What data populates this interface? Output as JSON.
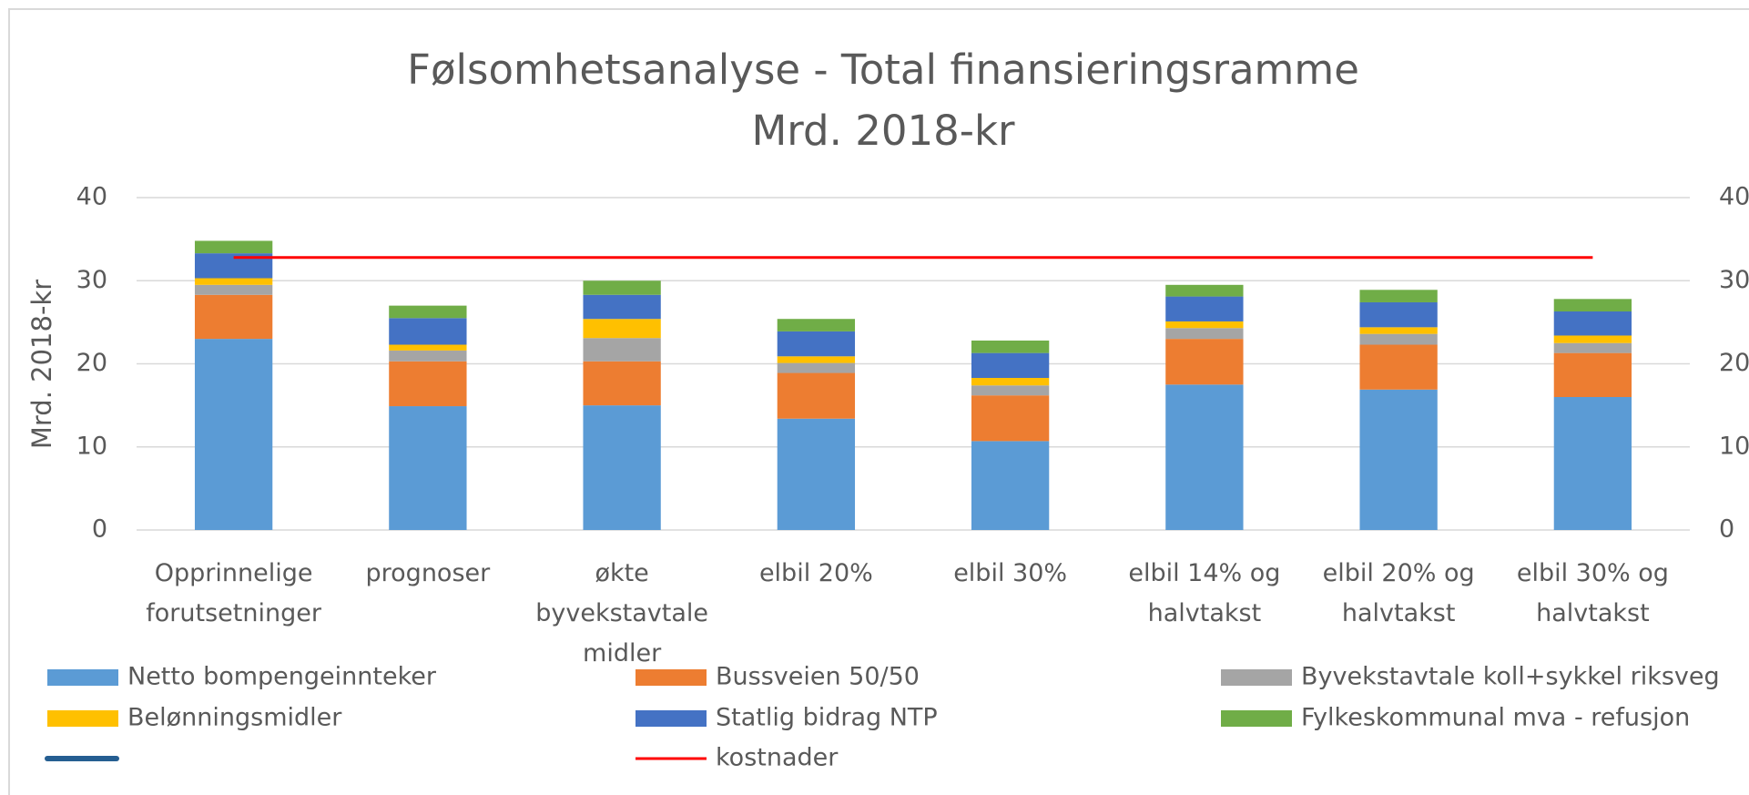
{
  "chart_data": {
    "type": "bar",
    "stacked": true,
    "title": "Følsomhetsanalyse - Total finansieringsramme",
    "subtitle": "Mrd. 2018-kr",
    "y_label": "Mrd. 2018-kr",
    "categories": [
      "Opprinnelige forutsetninger",
      "prognoser",
      "økte byvekstavtale midler",
      "elbil 20%",
      "elbil 30%",
      "elbil 14% og halvtakst",
      "elbil 20% og halvtakst",
      "elbil 30% og halvtakst"
    ],
    "ylim": [
      0,
      40
    ],
    "yticks": [
      0,
      10,
      20,
      30,
      40
    ],
    "y2lim": [
      0,
      40
    ],
    "y2ticks": [
      0,
      10,
      20,
      30,
      40
    ],
    "grid": true,
    "legend": "bottom",
    "series": [
      {
        "name": "Netto bompengeinnteker",
        "color": "#5b9bd5",
        "values": [
          23.0,
          14.9,
          15.0,
          13.4,
          10.7,
          17.5,
          16.9,
          16.0
        ]
      },
      {
        "name": "Bussveien 50/50",
        "color": "#ed7d31",
        "values": [
          5.3,
          5.4,
          5.3,
          5.5,
          5.5,
          5.5,
          5.4,
          5.3
        ]
      },
      {
        "name": "Byvekstavtale koll+sykkel riksveg",
        "color": "#a5a5a5",
        "values": [
          1.2,
          1.3,
          2.8,
          1.2,
          1.2,
          1.3,
          1.3,
          1.2
        ]
      },
      {
        "name": "Belønningsmidler",
        "color": "#ffc000",
        "values": [
          0.8,
          0.7,
          2.3,
          0.8,
          0.9,
          0.8,
          0.8,
          0.9
        ]
      },
      {
        "name": "Statlig bidrag NTP",
        "color": "#4472c4",
        "values": [
          3.0,
          3.2,
          2.9,
          3.0,
          3.0,
          3.0,
          3.0,
          2.9
        ]
      },
      {
        "name": "Fylkeskommunal mva - refusjon",
        "color": "#70ad47",
        "values": [
          1.5,
          1.5,
          1.7,
          1.5,
          1.5,
          1.4,
          1.5,
          1.5
        ]
      },
      {
        "name": "kostnader",
        "color": "#ff0000",
        "type": "line",
        "axis": "y2",
        "values": [
          32.8,
          32.8,
          32.8,
          32.8,
          32.8,
          32.8,
          32.8,
          32.8
        ]
      }
    ]
  }
}
